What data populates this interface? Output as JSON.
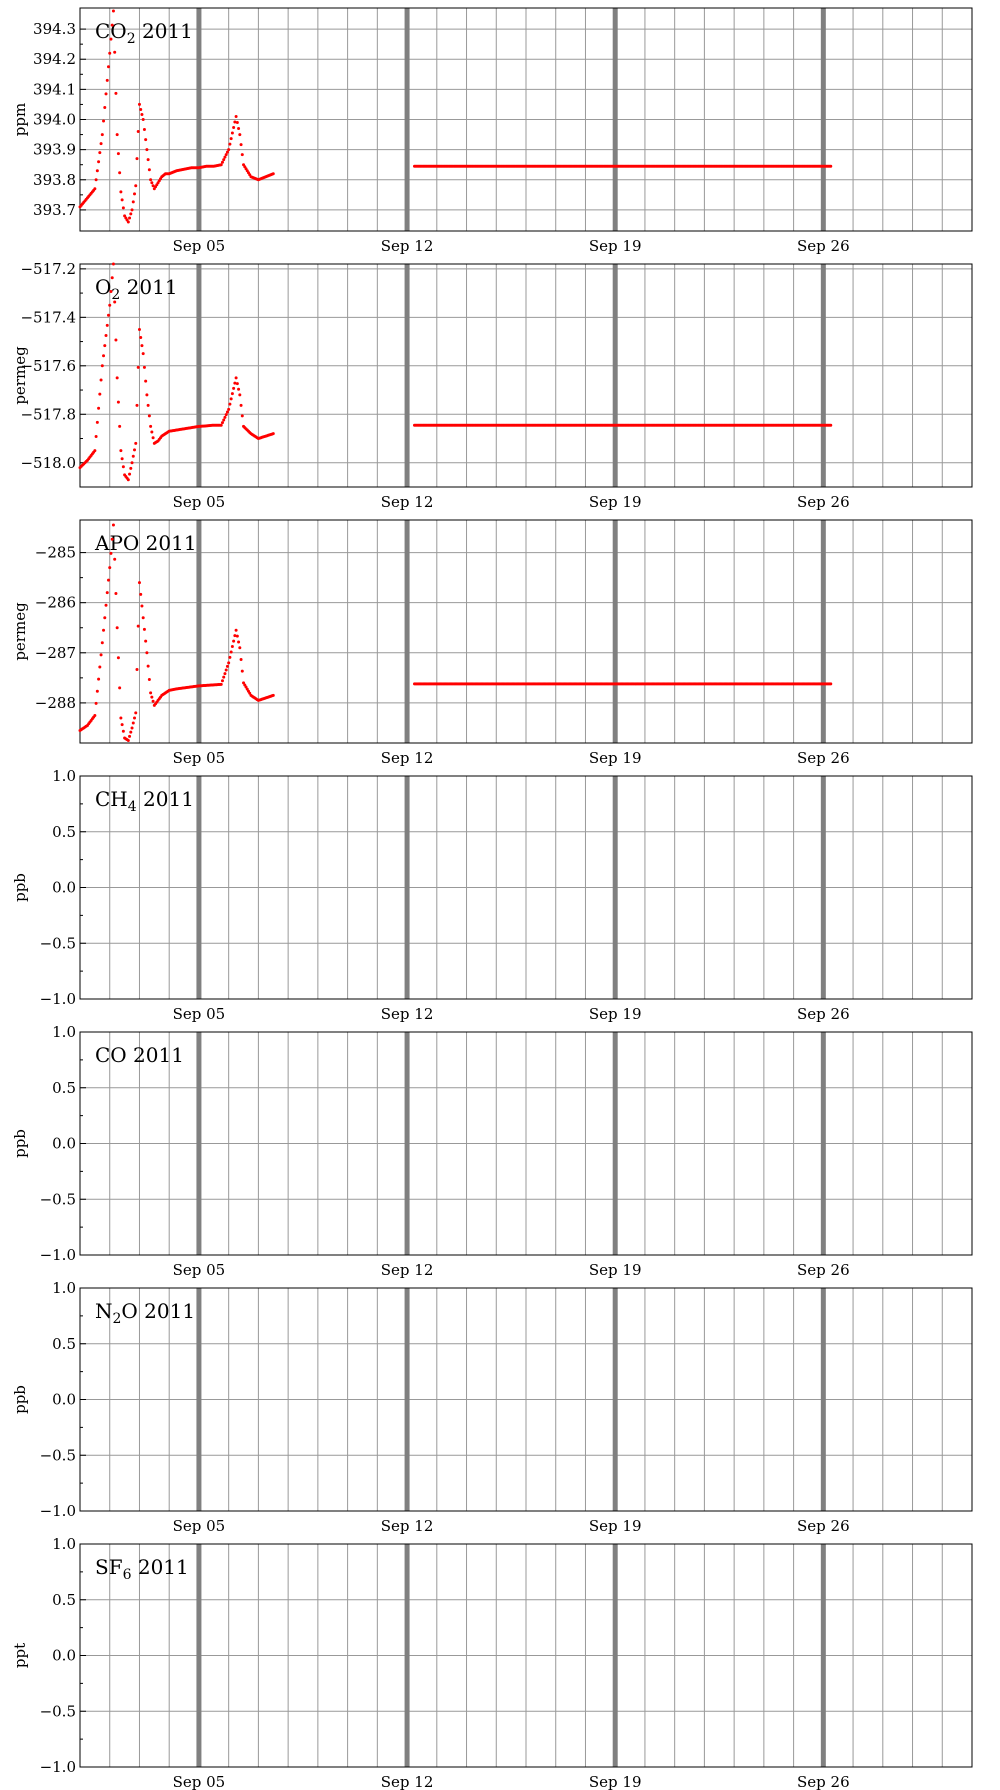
{
  "chart_data": [
    {
      "type": "scatter",
      "title": "CO2 2011",
      "title_main": "CO",
      "title_sub": "2",
      "title_rest": " 2011",
      "ylabel": "ppm",
      "ylim": [
        393.63,
        394.37
      ],
      "yticks": [
        393.7,
        393.8,
        393.9,
        394.0,
        394.1,
        394.2,
        394.3
      ],
      "ytick_labels": [
        "393.7",
        "393.8",
        "393.9",
        "394.0",
        "394.1",
        "394.2",
        "394.3"
      ],
      "xlim": [
        "2011-09-01",
        "2011-10-01"
      ],
      "xtick_dates": [
        "2011-09-05",
        "2011-09-12",
        "2011-09-19",
        "2011-09-26"
      ],
      "xtick_labels": [
        "Sep 05",
        "Sep 12",
        "Sep 19",
        "Sep 26"
      ],
      "grid": true,
      "color": "#ff0000",
      "series": [
        {
          "x": [
            "2011-09-01 00:00",
            "2011-09-01 06:00",
            "2011-09-01 12:00",
            "2011-09-01 18:00",
            "2011-09-02 00:00",
            "2011-09-02 03:00",
            "2011-09-02 06:00",
            "2011-09-02 09:00",
            "2011-09-02 12:00",
            "2011-09-02 15:00",
            "2011-09-02 18:00",
            "2011-09-02 21:00",
            "2011-09-03 00:00",
            "2011-09-03 03:00",
            "2011-09-03 06:00",
            "2011-09-03 09:00",
            "2011-09-03 12:00",
            "2011-09-03 15:00",
            "2011-09-03 18:00",
            "2011-09-03 21:00",
            "2011-09-04 00:00",
            "2011-09-04 06:00",
            "2011-09-04 12:00",
            "2011-09-04 18:00",
            "2011-09-05 00:00",
            "2011-09-05 06:00",
            "2011-09-05 12:00",
            "2011-09-05 18:00",
            "2011-09-06 00:00",
            "2011-09-06 06:00",
            "2011-09-06 09:00",
            "2011-09-06 12:00",
            "2011-09-06 18:00",
            "2011-09-07 00:00",
            "2011-09-07 06:00",
            "2011-09-07 12:00"
          ],
          "y": [
            393.71,
            393.74,
            393.77,
            393.95,
            394.22,
            394.36,
            393.95,
            393.76,
            393.68,
            393.66,
            393.7,
            393.78,
            394.05,
            394.0,
            393.9,
            393.8,
            393.77,
            393.79,
            393.81,
            393.82,
            393.82,
            393.83,
            393.835,
            393.84,
            393.84,
            393.845,
            393.845,
            393.85,
            393.9,
            394.01,
            393.95,
            393.85,
            393.81,
            393.8,
            393.81,
            393.82
          ]
        },
        {
          "x": [
            "2011-09-12 06:00",
            "2011-09-16 03:00",
            "2011-09-16 09:00",
            "2011-09-23 03:00",
            "2011-09-23 12:00",
            "2011-09-25 06:00",
            "2011-09-25 18:00",
            "2011-09-26 06:00"
          ],
          "y": [
            393.845,
            393.845,
            393.845,
            393.845,
            393.845,
            393.845,
            393.845,
            393.845
          ]
        }
      ]
    },
    {
      "type": "scatter",
      "title": "O2 2011",
      "title_main": "O",
      "title_sub": "2",
      "title_rest": " 2011",
      "ylabel": "permeg",
      "ylim": [
        -518.1,
        -517.18
      ],
      "yticks": [
        -518.0,
        -517.8,
        -517.6,
        -517.4,
        -517.2
      ],
      "ytick_labels": [
        "−518.0",
        "−517.8",
        "−517.6",
        "−517.4",
        "−517.2"
      ],
      "xlim": [
        "2011-09-01",
        "2011-10-01"
      ],
      "xtick_dates": [
        "2011-09-05",
        "2011-09-12",
        "2011-09-19",
        "2011-09-26"
      ],
      "xtick_labels": [
        "Sep 05",
        "Sep 12",
        "Sep 19",
        "Sep 26"
      ],
      "grid": true,
      "color": "#ff0000",
      "series": [
        {
          "x": [
            "2011-09-01 00:00",
            "2011-09-01 06:00",
            "2011-09-01 12:00",
            "2011-09-01 18:00",
            "2011-09-02 00:00",
            "2011-09-02 03:00",
            "2011-09-02 06:00",
            "2011-09-02 09:00",
            "2011-09-02 12:00",
            "2011-09-02 15:00",
            "2011-09-02 18:00",
            "2011-09-02 21:00",
            "2011-09-03 00:00",
            "2011-09-03 03:00",
            "2011-09-03 06:00",
            "2011-09-03 09:00",
            "2011-09-03 12:00",
            "2011-09-03 15:00",
            "2011-09-03 18:00",
            "2011-09-03 21:00",
            "2011-09-04 00:00",
            "2011-09-04 06:00",
            "2011-09-04 12:00",
            "2011-09-04 18:00",
            "2011-09-05 00:00",
            "2011-09-05 06:00",
            "2011-09-05 12:00",
            "2011-09-05 18:00",
            "2011-09-06 00:00",
            "2011-09-06 06:00",
            "2011-09-06 09:00",
            "2011-09-06 12:00",
            "2011-09-06 18:00",
            "2011-09-07 00:00",
            "2011-09-07 06:00",
            "2011-09-07 12:00"
          ],
          "y": [
            -518.02,
            -517.99,
            -517.95,
            -517.6,
            -517.35,
            -517.18,
            -517.65,
            -517.95,
            -518.05,
            -518.07,
            -518.0,
            -517.92,
            -517.45,
            -517.55,
            -517.72,
            -517.85,
            -517.92,
            -517.91,
            -517.89,
            -517.88,
            -517.87,
            -517.865,
            -517.86,
            -517.855,
            -517.85,
            -517.848,
            -517.845,
            -517.845,
            -517.78,
            -517.65,
            -517.72,
            -517.85,
            -517.88,
            -517.9,
            -517.89,
            -517.88
          ]
        },
        {
          "x": [
            "2011-09-12 06:00",
            "2011-09-16 03:00",
            "2011-09-16 09:00",
            "2011-09-23 03:00",
            "2011-09-23 12:00",
            "2011-09-25 06:00",
            "2011-09-25 18:00",
            "2011-09-26 06:00"
          ],
          "y": [
            -517.845,
            -517.845,
            -517.845,
            -517.845,
            -517.845,
            -517.845,
            -517.845,
            -517.845
          ]
        }
      ]
    },
    {
      "type": "scatter",
      "title": "APO 2011",
      "title_main": "APO",
      "title_sub": "",
      "title_rest": " 2011",
      "ylabel": "permeg",
      "ylim": [
        -288.8,
        -284.35
      ],
      "yticks": [
        -288,
        -287,
        -286,
        -285
      ],
      "ytick_labels": [
        "−288",
        "−287",
        "−286",
        "−285"
      ],
      "xlim": [
        "2011-09-01",
        "2011-10-01"
      ],
      "xtick_dates": [
        "2011-09-05",
        "2011-09-12",
        "2011-09-19",
        "2011-09-26"
      ],
      "xtick_labels": [
        "Sep 05",
        "Sep 12",
        "Sep 19",
        "Sep 26"
      ],
      "grid": true,
      "color": "#ff0000",
      "series": [
        {
          "x": [
            "2011-09-01 00:00",
            "2011-09-01 06:00",
            "2011-09-01 12:00",
            "2011-09-01 18:00",
            "2011-09-02 00:00",
            "2011-09-02 03:00",
            "2011-09-02 06:00",
            "2011-09-02 09:00",
            "2011-09-02 12:00",
            "2011-09-02 15:00",
            "2011-09-02 18:00",
            "2011-09-02 21:00",
            "2011-09-03 00:00",
            "2011-09-03 03:00",
            "2011-09-03 06:00",
            "2011-09-03 09:00",
            "2011-09-03 12:00",
            "2011-09-03 15:00",
            "2011-09-03 18:00",
            "2011-09-03 21:00",
            "2011-09-04 00:00",
            "2011-09-04 06:00",
            "2011-09-04 12:00",
            "2011-09-04 18:00",
            "2011-09-05 00:00",
            "2011-09-05 06:00",
            "2011-09-05 12:00",
            "2011-09-05 18:00",
            "2011-09-06 00:00",
            "2011-09-06 06:00",
            "2011-09-06 09:00",
            "2011-09-06 12:00",
            "2011-09-06 18:00",
            "2011-09-07 00:00",
            "2011-09-07 06:00",
            "2011-09-07 12:00"
          ],
          "y": [
            -288.55,
            -288.45,
            -288.25,
            -286.8,
            -285.3,
            -284.45,
            -286.5,
            -288.3,
            -288.7,
            -288.75,
            -288.5,
            -288.2,
            -285.6,
            -286.3,
            -287.0,
            -287.8,
            -288.05,
            -287.95,
            -287.85,
            -287.8,
            -287.75,
            -287.72,
            -287.7,
            -287.68,
            -287.66,
            -287.65,
            -287.64,
            -287.63,
            -287.2,
            -286.55,
            -286.9,
            -287.6,
            -287.85,
            -287.95,
            -287.9,
            -287.85
          ]
        },
        {
          "x": [
            "2011-09-12 06:00",
            "2011-09-16 03:00",
            "2011-09-16 09:00",
            "2011-09-23 03:00",
            "2011-09-23 12:00",
            "2011-09-25 06:00",
            "2011-09-25 18:00",
            "2011-09-26 06:00"
          ],
          "y": [
            -287.62,
            -287.62,
            -287.62,
            -287.62,
            -287.62,
            -287.62,
            -287.62,
            -287.62
          ]
        }
      ]
    },
    {
      "type": "scatter",
      "title": "CH4 2011",
      "title_main": "CH",
      "title_sub": "4",
      "title_rest": " 2011",
      "ylabel": "ppb",
      "ylim": [
        -1.0,
        1.0
      ],
      "yticks": [
        -1.0,
        -0.5,
        0.0,
        0.5,
        1.0
      ],
      "ytick_labels": [
        "−1.0",
        "−0.5",
        "0.0",
        "0.5",
        "1.0"
      ],
      "xlim": [
        "2011-09-01",
        "2011-10-01"
      ],
      "xtick_dates": [
        "2011-09-05",
        "2011-09-12",
        "2011-09-19",
        "2011-09-26"
      ],
      "xtick_labels": [
        "Sep 05",
        "Sep 12",
        "Sep 19",
        "Sep 26"
      ],
      "grid": true,
      "color": "#ff0000",
      "series": []
    },
    {
      "type": "scatter",
      "title": "CO 2011",
      "title_main": "CO",
      "title_sub": "",
      "title_rest": " 2011",
      "ylabel": "ppb",
      "ylim": [
        -1.0,
        1.0
      ],
      "yticks": [
        -1.0,
        -0.5,
        0.0,
        0.5,
        1.0
      ],
      "ytick_labels": [
        "−1.0",
        "−0.5",
        "0.0",
        "0.5",
        "1.0"
      ],
      "xlim": [
        "2011-09-01",
        "2011-10-01"
      ],
      "xtick_dates": [
        "2011-09-05",
        "2011-09-12",
        "2011-09-19",
        "2011-09-26"
      ],
      "xtick_labels": [
        "Sep 05",
        "Sep 12",
        "Sep 19",
        "Sep 26"
      ],
      "grid": true,
      "color": "#ff0000",
      "series": []
    },
    {
      "type": "scatter",
      "title": "N2O 2011",
      "title_main": "N",
      "title_sub": "2",
      "title_rest": "O 2011",
      "ylabel": "ppb",
      "ylim": [
        -1.0,
        1.0
      ],
      "yticks": [
        -1.0,
        -0.5,
        0.0,
        0.5,
        1.0
      ],
      "ytick_labels": [
        "−1.0",
        "−0.5",
        "0.0",
        "0.5",
        "1.0"
      ],
      "xlim": [
        "2011-09-01",
        "2011-10-01"
      ],
      "xtick_dates": [
        "2011-09-05",
        "2011-09-12",
        "2011-09-19",
        "2011-09-26"
      ],
      "xtick_labels": [
        "Sep 05",
        "Sep 12",
        "Sep 19",
        "Sep 26"
      ],
      "grid": true,
      "color": "#ff0000",
      "series": []
    },
    {
      "type": "scatter",
      "title": "SF6 2011",
      "title_main": "SF",
      "title_sub": "6",
      "title_rest": " 2011",
      "ylabel": "ppt",
      "ylim": [
        -1.0,
        1.0
      ],
      "yticks": [
        -1.0,
        -0.5,
        0.0,
        0.5,
        1.0
      ],
      "ytick_labels": [
        "−1.0",
        "−0.5",
        "0.0",
        "0.5",
        "1.0"
      ],
      "xlim": [
        "2011-09-01",
        "2011-10-01"
      ],
      "xtick_dates": [
        "2011-09-05",
        "2011-09-12",
        "2011-09-19",
        "2011-09-26"
      ],
      "xtick_labels": [
        "Sep 05",
        "Sep 12",
        "Sep 19",
        "Sep 26"
      ],
      "grid": true,
      "color": "#ff0000",
      "series": []
    }
  ]
}
